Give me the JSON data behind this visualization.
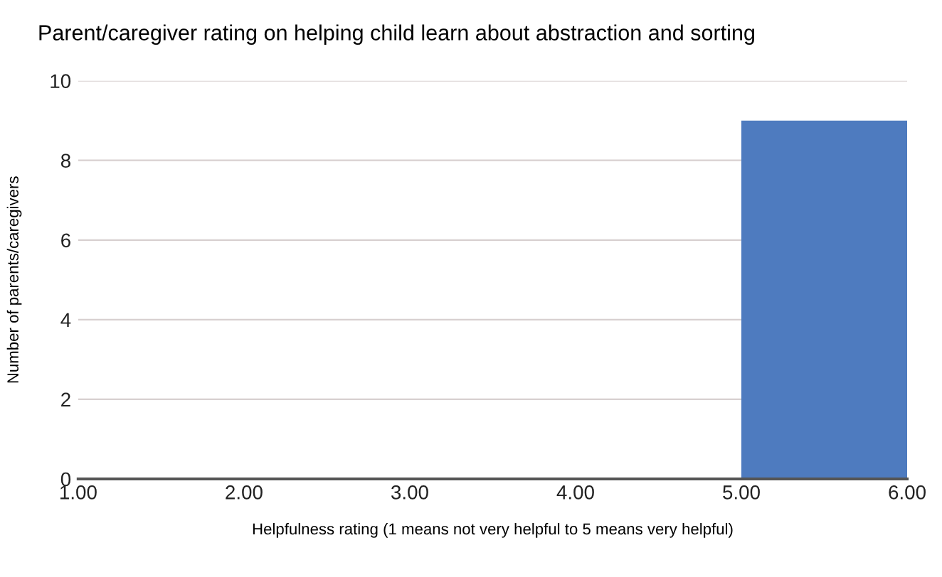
{
  "chart_data": {
    "type": "histogram",
    "title": "Parent/caregiver rating on helping child learn about abstraction and sorting",
    "xlabel": "Helpfulness rating (1 means not very helpful to 5 means very helpful)",
    "ylabel": "Number of parents/caregivers",
    "bins": [
      1,
      2,
      3,
      4,
      5,
      6
    ],
    "values": [
      0,
      0,
      0,
      0,
      9
    ],
    "color": "#4e7bbf",
    "xlim": [
      1,
      6
    ],
    "xticks": [
      {
        "value": 1,
        "label": "1.00"
      },
      {
        "value": 2,
        "label": "2.00"
      },
      {
        "value": 3,
        "label": "3.00"
      },
      {
        "value": 4,
        "label": "4.00"
      },
      {
        "value": 5,
        "label": "5.00"
      },
      {
        "value": 6,
        "label": "6.00"
      }
    ],
    "ylim": [
      0,
      10
    ],
    "yticks": [
      0,
      2,
      4,
      6,
      8,
      10
    ],
    "grid": "y",
    "legend": false
  }
}
